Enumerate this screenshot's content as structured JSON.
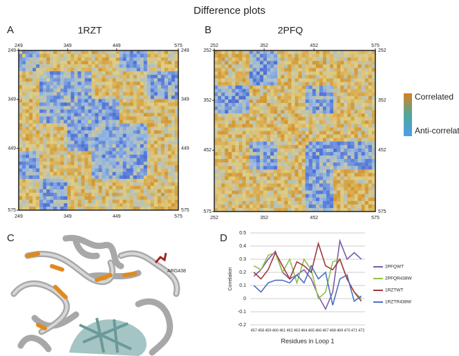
{
  "title": "Difference plots",
  "panels": [
    {
      "label": "A",
      "title": "1RZT",
      "ticks": [
        249,
        349,
        449,
        575
      ]
    },
    {
      "label": "B",
      "title": "2PFQ",
      "ticks": [
        252,
        352,
        452,
        575
      ]
    },
    {
      "label": "C",
      "annotation": "ARG438"
    }
  ],
  "colorbar": {
    "high": "Correlated",
    "low": "Anti-correlated"
  },
  "chart_data": {
    "type": "line",
    "panel": "D",
    "xlabel": "Residues in Loop 1",
    "ylabel": "Correlation",
    "categories": [
      "457",
      "458",
      "459",
      "460",
      "461",
      "462",
      "463",
      "464",
      "465",
      "466",
      "467",
      "468",
      "469",
      "470",
      "471",
      "472"
    ],
    "ylim": [
      -0.2,
      0.5
    ],
    "yticks": [
      -0.2,
      -0.1,
      0,
      0.1,
      0.2,
      0.3,
      0.4,
      0.5
    ],
    "grid": true,
    "legend": "right",
    "series": [
      {
        "name": "2PFQWT",
        "color": "#7a5aa6",
        "values": [
          0.17,
          0.22,
          0.3,
          0.36,
          0.2,
          0.15,
          0.18,
          0.22,
          0.15,
          0.02,
          -0.08,
          0.05,
          0.44,
          0.3,
          0.35,
          0.3
        ]
      },
      {
        "name": "2PFQR438W",
        "color": "#8fbf4a",
        "values": [
          0.25,
          0.22,
          0.33,
          0.35,
          0.2,
          0.3,
          0.12,
          0.3,
          0.22,
          0.0,
          0.05,
          0.28,
          0.3,
          0.15,
          0.05,
          0.0
        ]
      },
      {
        "name": "1RZTWT",
        "color": "#a3353e",
        "values": [
          0.2,
          0.15,
          0.22,
          0.35,
          0.25,
          0.15,
          0.28,
          0.25,
          0.2,
          0.42,
          0.25,
          0.22,
          0.3,
          0.15,
          0.05,
          -0.02
        ]
      },
      {
        "name": "1RZTR438W",
        "color": "#4a6fc0",
        "values": [
          0.1,
          0.05,
          0.12,
          0.14,
          0.14,
          0.12,
          0.18,
          0.12,
          0.25,
          0.15,
          0.2,
          -0.05,
          0.15,
          0.18,
          -0.02,
          0.02
        ]
      }
    ]
  }
}
